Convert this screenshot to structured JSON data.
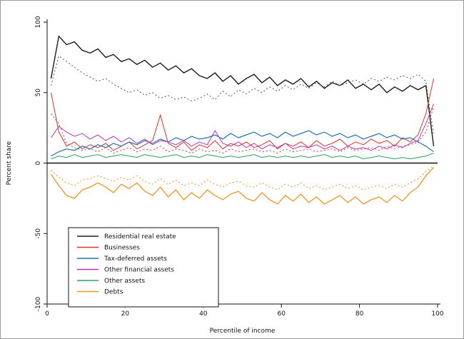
{
  "figure": {
    "xlabel": "Percentile of income",
    "ylabel": "Percent share"
  },
  "chart_data": {
    "type": "line",
    "title": "",
    "xlabel": "Percentile of income",
    "ylabel": "Percent share",
    "xlim": [
      0,
      100
    ],
    "ylim": [
      -100,
      100
    ],
    "x_ticks": [
      0,
      20,
      40,
      60,
      80,
      100
    ],
    "y_ticks": [
      -100,
      -50,
      0,
      50,
      100
    ],
    "grid": false,
    "legend_position": "lower-left-box",
    "zero_line": true,
    "x": [
      1,
      3,
      5,
      7,
      9,
      11,
      13,
      15,
      17,
      19,
      21,
      23,
      25,
      27,
      29,
      31,
      33,
      35,
      37,
      39,
      41,
      43,
      45,
      47,
      49,
      51,
      53,
      55,
      57,
      59,
      61,
      63,
      65,
      67,
      69,
      71,
      73,
      75,
      77,
      79,
      81,
      83,
      85,
      87,
      89,
      91,
      93,
      95,
      97,
      99
    ],
    "series": [
      {
        "name": "Residential real estate",
        "color": "#1a1a1a",
        "style": "solid",
        "width": 1.4,
        "legend": true,
        "values": [
          60,
          90,
          84,
          86,
          80,
          78,
          81,
          75,
          77,
          72,
          74,
          70,
          73,
          68,
          71,
          66,
          69,
          64,
          67,
          62,
          60,
          64,
          58,
          62,
          56,
          60,
          63,
          57,
          61,
          55,
          59,
          56,
          60,
          54,
          58,
          53,
          57,
          55,
          59,
          53,
          56,
          52,
          56,
          50,
          54,
          51,
          55,
          52,
          55,
          12
        ]
      },
      {
        "name": "Residential real estate (dotted)",
        "color": "#555555",
        "style": "dotted",
        "width": 1,
        "legend": false,
        "values": [
          55,
          76,
          72,
          68,
          64,
          61,
          58,
          60,
          56,
          53,
          50,
          52,
          48,
          50,
          46,
          48,
          45,
          47,
          44,
          46,
          49,
          45,
          51,
          47,
          52,
          49,
          53,
          50,
          54,
          51,
          55,
          52,
          56,
          53,
          57,
          54,
          58,
          55,
          57,
          59,
          56,
          60,
          58,
          61,
          59,
          62,
          60,
          63,
          58,
          20
        ]
      },
      {
        "name": "Businesses",
        "color": "#e03127",
        "style": "solid",
        "width": 1,
        "legend": true,
        "values": [
          50,
          22,
          12,
          15,
          10,
          13,
          11,
          14,
          9,
          12,
          15,
          10,
          13,
          16,
          34,
          14,
          11,
          15,
          9,
          13,
          11,
          16,
          10,
          14,
          12,
          15,
          11,
          13,
          16,
          10,
          14,
          12,
          15,
          11,
          16,
          12,
          14,
          17,
          12,
          15,
          13,
          17,
          14,
          16,
          12,
          18,
          15,
          20,
          35,
          60
        ]
      },
      {
        "name": "Businesses (dotted)",
        "color": "#e03127",
        "style": "dotted",
        "width": 1,
        "legend": false,
        "values": [
          35,
          28,
          14,
          11,
          9,
          10,
          8,
          11,
          7,
          9,
          11,
          8,
          10,
          9,
          12,
          8,
          10,
          9,
          7,
          10,
          8,
          9,
          7,
          10,
          8,
          9,
          10,
          8,
          9,
          7,
          10,
          8,
          9,
          10,
          8,
          9,
          10,
          8,
          11,
          9,
          10,
          11,
          9,
          12,
          10,
          12,
          13,
          15,
          22,
          40
        ]
      },
      {
        "name": "Tax-deferred assets",
        "color": "#2171b5",
        "style": "solid",
        "width": 1.2,
        "legend": true,
        "values": [
          5,
          8,
          10,
          9,
          12,
          10,
          13,
          11,
          14,
          12,
          15,
          13,
          16,
          14,
          17,
          15,
          18,
          16,
          19,
          17,
          18,
          20,
          17,
          21,
          18,
          20,
          22,
          19,
          21,
          18,
          22,
          19,
          21,
          23,
          20,
          22,
          19,
          21,
          18,
          20,
          17,
          19,
          21,
          18,
          20,
          17,
          18,
          15,
          12,
          8
        ]
      },
      {
        "name": "Other financial assets",
        "color": "#b535b5",
        "style": "solid",
        "width": 1,
        "legend": true,
        "values": [
          18,
          26,
          22,
          19,
          21,
          17,
          20,
          16,
          19,
          15,
          18,
          14,
          17,
          13,
          16,
          15,
          13,
          16,
          12,
          15,
          13,
          23,
          14,
          12,
          15,
          11,
          14,
          10,
          13,
          11,
          14,
          10,
          12,
          11,
          13,
          10,
          12,
          9,
          12,
          10,
          11,
          9,
          12,
          10,
          13,
          11,
          14,
          16,
          28,
          42
        ]
      },
      {
        "name": "Other assets",
        "color": "#2aa05a",
        "style": "solid",
        "width": 1,
        "legend": true,
        "values": [
          3,
          5,
          4,
          6,
          4,
          5,
          6,
          4,
          5,
          6,
          5,
          4,
          6,
          5,
          4,
          5,
          6,
          4,
          5,
          4,
          6,
          5,
          4,
          5,
          4,
          5,
          6,
          4,
          5,
          4,
          5,
          4,
          5,
          4,
          5,
          6,
          4,
          5,
          4,
          5,
          3,
          4,
          5,
          4,
          3,
          4,
          3,
          4,
          5,
          7
        ]
      },
      {
        "name": "Debts",
        "color": "#f59321",
        "style": "solid",
        "width": 1.3,
        "legend": true,
        "values": [
          -8,
          -16,
          -23,
          -25,
          -19,
          -17,
          -14,
          -17,
          -21,
          -15,
          -18,
          -14,
          -20,
          -23,
          -17,
          -24,
          -19,
          -26,
          -21,
          -25,
          -19,
          -23,
          -26,
          -22,
          -20,
          -25,
          -27,
          -21,
          -26,
          -29,
          -23,
          -27,
          -22,
          -28,
          -24,
          -29,
          -26,
          -23,
          -28,
          -24,
          -29,
          -26,
          -24,
          -28,
          -23,
          -27,
          -21,
          -17,
          -9,
          -3
        ]
      },
      {
        "name": "Debts (dotted)",
        "color": "#f59321",
        "style": "dotted",
        "width": 1,
        "legend": false,
        "values": [
          -5,
          -10,
          -14,
          -16,
          -12,
          -11,
          -9,
          -11,
          -13,
          -10,
          -12,
          -9,
          -13,
          -15,
          -11,
          -15,
          -12,
          -16,
          -14,
          -16,
          -12,
          -15,
          -17,
          -14,
          -13,
          -16,
          -17,
          -14,
          -17,
          -19,
          -15,
          -17,
          -14,
          -18,
          -16,
          -19,
          -17,
          -15,
          -18,
          -16,
          -19,
          -17,
          -16,
          -18,
          -15,
          -17,
          -14,
          -11,
          -6,
          -2
        ]
      }
    ],
    "legend_entries": [
      "Residential real estate",
      "Businesses",
      "Tax-deferred assets",
      "Other financial assets",
      "Other assets",
      "Debts"
    ]
  }
}
